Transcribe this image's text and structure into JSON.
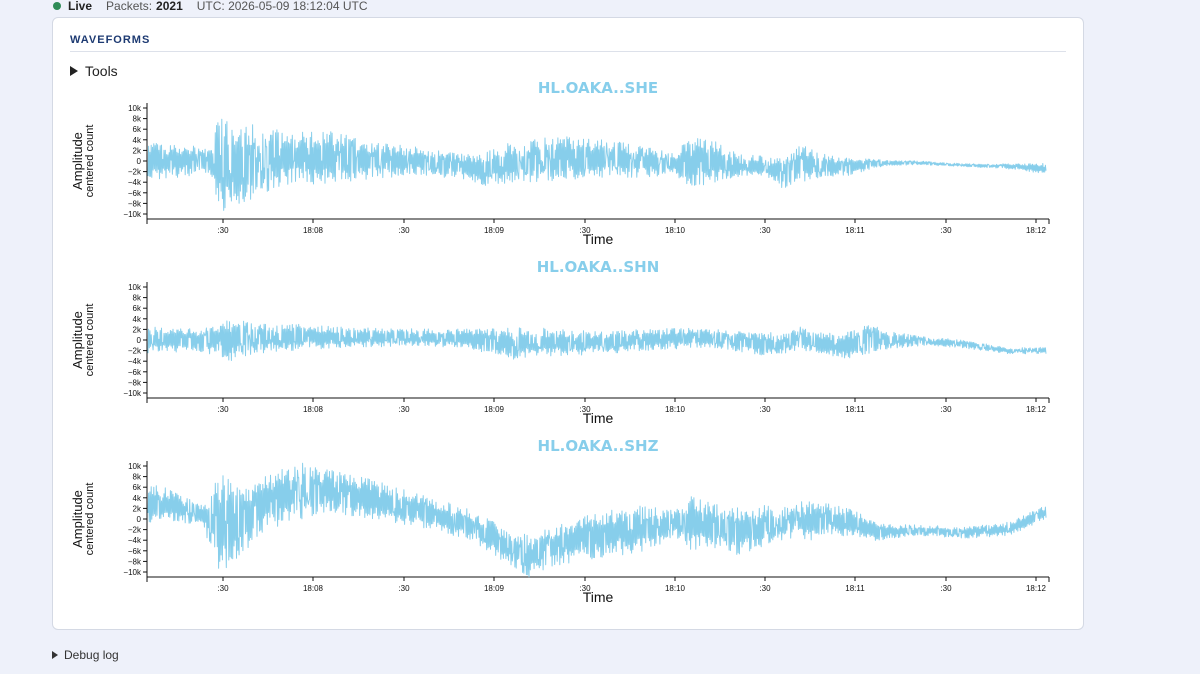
{
  "status": {
    "live_label": "Live",
    "packets_label": "Packets:",
    "packets_value": "2021",
    "utc_text": "UTC: 2026-05-09 18:12:04 UTC",
    "live_color": "#2e8b57"
  },
  "panel": {
    "title": "WAVEFORMS",
    "tools_label": "Tools"
  },
  "debug_label": "Debug log",
  "chart_data": [
    {
      "type": "line",
      "title": "HL.OAKA..SHE",
      "xlabel": "Time",
      "ylabel": "Amplitude",
      "ylabel2": "centered count",
      "color": "#87ceeb",
      "x_ticks": [
        ":30",
        "18:08",
        ":30",
        "18:09",
        ":30",
        "18:10",
        ":30",
        "18:11",
        ":30",
        "18:12"
      ],
      "x_range": [
        "18:07:15",
        "18:12:05"
      ],
      "y_ticks": [
        "10k",
        "8k",
        "6k",
        "4k",
        "2k",
        "0",
        "−2k",
        "−4k",
        "−6k",
        "−8k",
        "−10k"
      ],
      "ylim": [
        -10500,
        10500
      ],
      "envelope": {
        "x": [
          0,
          0.03,
          0.07,
          0.08,
          0.09,
          0.12,
          0.15,
          0.2,
          0.25,
          0.3,
          0.35,
          0.37,
          0.4,
          0.45,
          0.5,
          0.55,
          0.58,
          0.6,
          0.62,
          0.65,
          0.68,
          0.7,
          0.72,
          0.75,
          0.78,
          0.8,
          0.82,
          0.85,
          0.9,
          0.95,
          0.99
        ],
        "upper": [
          3500,
          3000,
          2500,
          9500,
          7500,
          6500,
          5500,
          5500,
          3500,
          2500,
          1200,
          1500,
          3500,
          4500,
          4000,
          2500,
          1500,
          4500,
          4000,
          1500,
          1000,
          300,
          3000,
          1000,
          500,
          300,
          200,
          0,
          -500,
          -500,
          -400
        ],
        "lower": [
          -3500,
          -3000,
          -2500,
          -10000,
          -8500,
          -6500,
          -4500,
          -4000,
          -3500,
          -2500,
          -3500,
          -4500,
          -4000,
          -3500,
          -3000,
          -3000,
          -2500,
          -5000,
          -4000,
          -3000,
          -2500,
          -5000,
          -4000,
          -3000,
          -2500,
          -1200,
          -800,
          -700,
          -1000,
          -1500,
          -2300
        ],
        "center": [
          0,
          0,
          0,
          -500,
          -300,
          0,
          500,
          1000,
          500,
          0,
          -1500,
          -1500,
          -1000,
          -500,
          0,
          -300,
          -200,
          -300,
          0,
          -700,
          -700,
          -1200,
          -500,
          -1000,
          -600,
          -400,
          -200,
          -300,
          -700,
          -900,
          -1300
        ]
      }
    },
    {
      "type": "line",
      "title": "HL.OAKA..SHN",
      "xlabel": "Time",
      "ylabel": "Amplitude",
      "ylabel2": "centered count",
      "color": "#87ceeb",
      "x_ticks": [
        ":30",
        "18:08",
        ":30",
        "18:09",
        ":30",
        "18:10",
        ":30",
        "18:11",
        ":30",
        "18:12"
      ],
      "x_range": [
        "18:07:15",
        "18:12:05"
      ],
      "y_ticks": [
        "10k",
        "8k",
        "6k",
        "4k",
        "2k",
        "0",
        "−2k",
        "−4k",
        "−6k",
        "−8k",
        "−10k"
      ],
      "ylim": [
        -10500,
        10500
      ],
      "envelope": {
        "x": [
          0,
          0.05,
          0.08,
          0.09,
          0.1,
          0.15,
          0.2,
          0.3,
          0.35,
          0.4,
          0.45,
          0.5,
          0.55,
          0.6,
          0.65,
          0.68,
          0.7,
          0.72,
          0.75,
          0.78,
          0.8,
          0.82,
          0.86,
          0.9,
          0.95,
          0.99
        ],
        "upper": [
          2500,
          2000,
          2500,
          4000,
          3500,
          3000,
          2500,
          2000,
          2000,
          2500,
          2000,
          1500,
          2000,
          2500,
          1500,
          1500,
          1000,
          2500,
          1200,
          2000,
          3000,
          1500,
          500,
          0,
          -1500,
          -1200
        ],
        "lower": [
          -2500,
          -2000,
          -3000,
          -4000,
          -3000,
          -2000,
          -1500,
          -1000,
          -1500,
          -3500,
          -3000,
          -2500,
          -2000,
          -1500,
          -2000,
          -3000,
          -2500,
          -2000,
          -3000,
          -3500,
          -2000,
          -1500,
          -1000,
          -1500,
          -2500,
          -2500
        ],
        "center": [
          0,
          0,
          0,
          0,
          0,
          500,
          500,
          300,
          0,
          -700,
          -800,
          -600,
          -400,
          300,
          -300,
          -600,
          -800,
          0,
          -900,
          -600,
          300,
          0,
          -250,
          -750,
          -2000,
          -1850
        ]
      }
    },
    {
      "type": "line",
      "title": "HL.OAKA..SHZ",
      "xlabel": "Time",
      "ylabel": "Amplitude",
      "ylabel2": "centered count",
      "color": "#87ceeb",
      "x_ticks": [
        ":30",
        "18:08",
        ":30",
        "18:09",
        ":30",
        "18:10",
        ":30",
        "18:11",
        ":30",
        "18:12"
      ],
      "x_range": [
        "18:07:15",
        "18:12:05"
      ],
      "y_ticks": [
        "10k",
        "8k",
        "6k",
        "4k",
        "2k",
        "0",
        "−2k",
        "−4k",
        "−6k",
        "−8k",
        "−10k"
      ],
      "ylim": [
        -10500,
        10500
      ],
      "envelope": {
        "x": [
          0,
          0.03,
          0.06,
          0.08,
          0.1,
          0.13,
          0.17,
          0.2,
          0.25,
          0.3,
          0.35,
          0.4,
          0.42,
          0.45,
          0.5,
          0.55,
          0.58,
          0.6,
          0.62,
          0.65,
          0.68,
          0.7,
          0.72,
          0.75,
          0.78,
          0.8,
          0.82,
          0.85,
          0.9,
          0.95,
          0.99
        ],
        "upper": [
          7000,
          5000,
          2500,
          8500,
          6000,
          8000,
          10500,
          9000,
          7000,
          4500,
          2000,
          -2000,
          -3000,
          -1000,
          1500,
          2500,
          1500,
          4500,
          3000,
          2000,
          2500,
          2000,
          3500,
          3000,
          1500,
          -500,
          -1000,
          -1000,
          -1500,
          -500,
          2500
        ],
        "lower": [
          -1000,
          -500,
          -1000,
          -10500,
          -7000,
          -2000,
          0,
          1000,
          0,
          -1500,
          -3500,
          -8500,
          -10500,
          -8500,
          -7000,
          -6000,
          -3000,
          -6000,
          -5000,
          -6500,
          -5000,
          -4000,
          -4000,
          -3500,
          -3000,
          -4000,
          -3500,
          -3000,
          -3500,
          -3000,
          0
        ],
        "center": [
          3500,
          2500,
          700,
          -1500,
          -500,
          3000,
          5200,
          5000,
          3500,
          1500,
          -700,
          -5200,
          -6700,
          -4700,
          -2700,
          -1700,
          -700,
          -700,
          -1000,
          -2200,
          -1200,
          -1000,
          -300,
          -300,
          -700,
          -2200,
          -2200,
          -2000,
          -2500,
          -1700,
          1250
        ]
      }
    }
  ]
}
